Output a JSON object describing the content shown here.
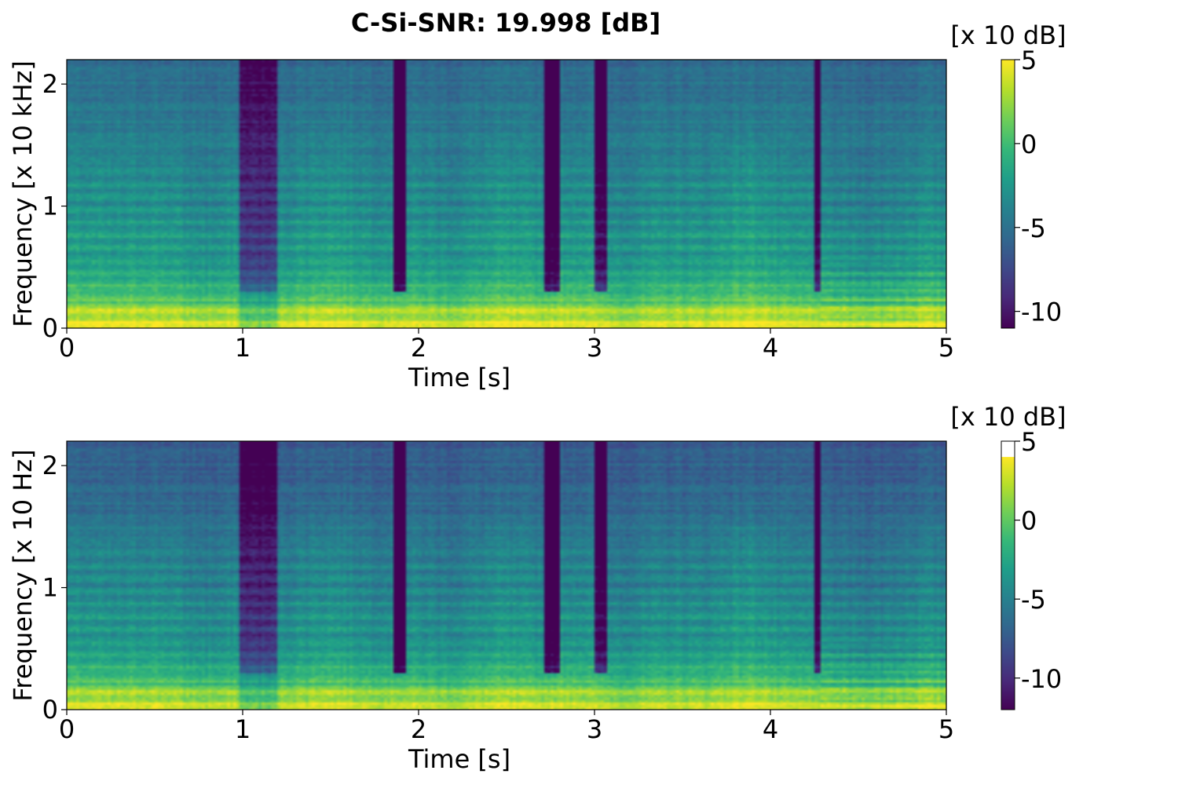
{
  "title": "C-Si-SNR: 19.998 [dB]",
  "chart_data": [
    {
      "type": "heatmap",
      "name": "upper-spectrogram",
      "xlabel": "Time [s]",
      "ylabel": "Frequency [x 10 kHz]",
      "xlim": [
        0,
        5
      ],
      "ylim": [
        0,
        2.2
      ],
      "xticks": [
        0,
        1,
        2,
        3,
        4,
        5
      ],
      "xtick_labels": [
        "0",
        "1",
        "2",
        "3",
        "4",
        "5"
      ],
      "yticks": [
        0,
        1,
        2
      ],
      "ytick_labels": [
        "0",
        "1",
        "2"
      ],
      "colorbar": {
        "label": "[x 10 dB]",
        "range": [
          -11,
          5
        ],
        "ticks": [
          5,
          0,
          -5,
          -10
        ],
        "tick_labels": [
          "5",
          "0",
          "-5",
          "-10"
        ],
        "clipped_top": null
      },
      "colormap": "viridis"
    },
    {
      "type": "heatmap",
      "name": "lower-spectrogram",
      "xlabel": "Time [s]",
      "ylabel": "Frequency [x 10 Hz]",
      "xlim": [
        0,
        5
      ],
      "ylim": [
        0,
        2.2
      ],
      "xticks": [
        0,
        1,
        2,
        3,
        4,
        5
      ],
      "xtick_labels": [
        "0",
        "1",
        "2",
        "3",
        "4",
        "5"
      ],
      "yticks": [
        0,
        1,
        2
      ],
      "ytick_labels": [
        "0",
        "1",
        "2"
      ],
      "colorbar": {
        "label": "[x 10 dB]",
        "range": [
          -12,
          5
        ],
        "ticks": [
          5,
          0,
          -5,
          -10
        ],
        "tick_labels": [
          "5",
          "0",
          "-5",
          "-10"
        ],
        "clipped_top": 4
      },
      "colormap": "viridis"
    }
  ],
  "colors": {
    "viridis": [
      "#440154",
      "#482878",
      "#3e4989",
      "#31688e",
      "#26828e",
      "#1f9e89",
      "#35b779",
      "#6ece58",
      "#b5de2b",
      "#fde725"
    ],
    "axis": "#000000"
  }
}
